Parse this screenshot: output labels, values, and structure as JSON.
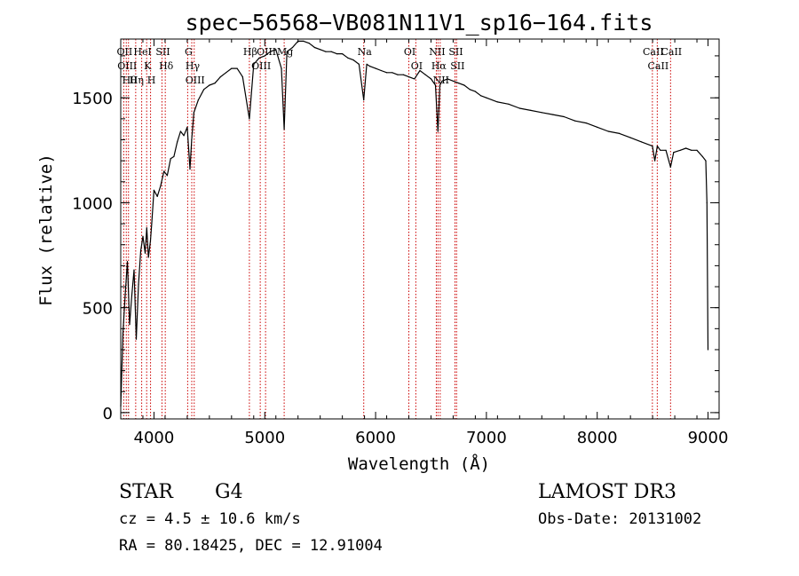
{
  "chart_data": {
    "type": "line",
    "title": "spec−56568−VB081N11V1_sp16−164.fits",
    "xlabel": "Wavelength (Å)",
    "ylabel": "Flux (relative)",
    "xlim": [
      3700,
      9100
    ],
    "ylim": [
      -30,
      1780
    ],
    "xticks": [
      4000,
      5000,
      6000,
      7000,
      8000,
      9000
    ],
    "xtick_labels": [
      "4000",
      "5000",
      "6000",
      "7000",
      "8000",
      "9000"
    ],
    "yticks": [
      0,
      500,
      1000,
      1500
    ],
    "ytick_labels": [
      "0",
      "500",
      "1000",
      "1500"
    ],
    "series": [
      {
        "name": "flux",
        "x": [
          3700,
          3720,
          3740,
          3760,
          3780,
          3800,
          3820,
          3840,
          3860,
          3880,
          3900,
          3920,
          3935,
          3950,
          3968,
          3980,
          4000,
          4030,
          4060,
          4090,
          4120,
          4150,
          4180,
          4210,
          4240,
          4270,
          4300,
          4325,
          4340,
          4360,
          4400,
          4450,
          4500,
          4550,
          4600,
          4650,
          4700,
          4750,
          4800,
          4861,
          4900,
          4950,
          5000,
          5050,
          5100,
          5150,
          5175,
          5200,
          5250,
          5300,
          5350,
          5400,
          5450,
          5500,
          5550,
          5600,
          5650,
          5700,
          5750,
          5800,
          5850,
          5893,
          5920,
          5950,
          6000,
          6050,
          6100,
          6150,
          6200,
          6250,
          6300,
          6350,
          6400,
          6450,
          6500,
          6540,
          6563,
          6580,
          6600,
          6650,
          6700,
          6750,
          6800,
          6850,
          6900,
          6950,
          7000,
          7100,
          7200,
          7300,
          7400,
          7500,
          7600,
          7700,
          7800,
          7900,
          8000,
          8100,
          8200,
          8300,
          8400,
          8498,
          8520,
          8542,
          8570,
          8620,
          8662,
          8690,
          8750,
          8800,
          8850,
          8900,
          8950,
          8980,
          8990,
          9000
        ],
        "values": [
          30,
          380,
          560,
          720,
          420,
          560,
          680,
          350,
          610,
          770,
          840,
          760,
          880,
          740,
          820,
          900,
          1060,
          1030,
          1080,
          1150,
          1130,
          1210,
          1220,
          1290,
          1340,
          1320,
          1360,
          1160,
          1300,
          1430,
          1490,
          1540,
          1560,
          1570,
          1600,
          1620,
          1640,
          1640,
          1600,
          1400,
          1660,
          1690,
          1700,
          1720,
          1730,
          1640,
          1350,
          1720,
          1740,
          1770,
          1770,
          1760,
          1740,
          1730,
          1720,
          1720,
          1710,
          1710,
          1690,
          1680,
          1660,
          1490,
          1660,
          1650,
          1640,
          1630,
          1620,
          1620,
          1610,
          1610,
          1600,
          1590,
          1630,
          1610,
          1590,
          1560,
          1340,
          1560,
          1580,
          1590,
          1580,
          1570,
          1560,
          1540,
          1530,
          1510,
          1500,
          1480,
          1470,
          1450,
          1440,
          1430,
          1420,
          1410,
          1390,
          1380,
          1360,
          1340,
          1330,
          1310,
          1290,
          1270,
          1200,
          1270,
          1250,
          1250,
          1170,
          1240,
          1250,
          1260,
          1250,
          1250,
          1220,
          1200,
          1000,
          300
        ]
      }
    ],
    "line_markers": [
      {
        "wavelength": 3727,
        "labels": [
          "OII"
        ]
      },
      {
        "wavelength": 3750,
        "labels": [
          "OIII"
        ]
      },
      {
        "wavelength": 3770,
        "labels": [
          "Hθ"
        ]
      },
      {
        "wavelength": 3835,
        "labels": [
          "Hη"
        ]
      },
      {
        "wavelength": 3889,
        "labels": [
          "HeI"
        ]
      },
      {
        "wavelength": 3934,
        "labels": [
          "K"
        ]
      },
      {
        "wavelength": 3969,
        "labels": [
          "H"
        ]
      },
      {
        "wavelength": 4072,
        "labels": [
          "SII"
        ]
      },
      {
        "wavelength": 4102,
        "labels": [
          "Hδ"
        ]
      },
      {
        "wavelength": 4304,
        "labels": [
          "G"
        ]
      },
      {
        "wavelength": 4341,
        "labels": [
          "Hγ"
        ]
      },
      {
        "wavelength": 4363,
        "labels": [
          "OIII"
        ]
      },
      {
        "wavelength": 4861,
        "labels": [
          "Hβ"
        ]
      },
      {
        "wavelength": 4959,
        "labels": [
          "OIII"
        ]
      },
      {
        "wavelength": 5007,
        "labels": [
          "OIII"
        ]
      },
      {
        "wavelength": 5175,
        "labels": [
          "Mg"
        ]
      },
      {
        "wavelength": 5893,
        "labels": [
          "Na"
        ]
      },
      {
        "wavelength": 6300,
        "labels": [
          "OI"
        ]
      },
      {
        "wavelength": 6363,
        "labels": [
          "OI"
        ]
      },
      {
        "wavelength": 6548,
        "labels": [
          "NII"
        ]
      },
      {
        "wavelength": 6563,
        "labels": [
          "Hα"
        ]
      },
      {
        "wavelength": 6583,
        "labels": [
          "NII"
        ]
      },
      {
        "wavelength": 6716,
        "labels": [
          "SII"
        ]
      },
      {
        "wavelength": 6731,
        "labels": [
          "SII"
        ]
      },
      {
        "wavelength": 8498,
        "labels": [
          "CaII"
        ]
      },
      {
        "wavelength": 8542,
        "labels": [
          "CaII"
        ]
      },
      {
        "wavelength": 8662,
        "labels": [
          "CaII"
        ]
      }
    ],
    "marker_color": "#cc0000",
    "line_color": "#000000"
  },
  "info": {
    "object_class": "STAR",
    "subclass": "G4",
    "survey": "LAMOST DR3",
    "cz": "cz = 4.5 ± 10.6 km/s",
    "obs_date": "Obs-Date: 20131002",
    "coords": "RA =  80.18425, DEC =  12.91004"
  }
}
